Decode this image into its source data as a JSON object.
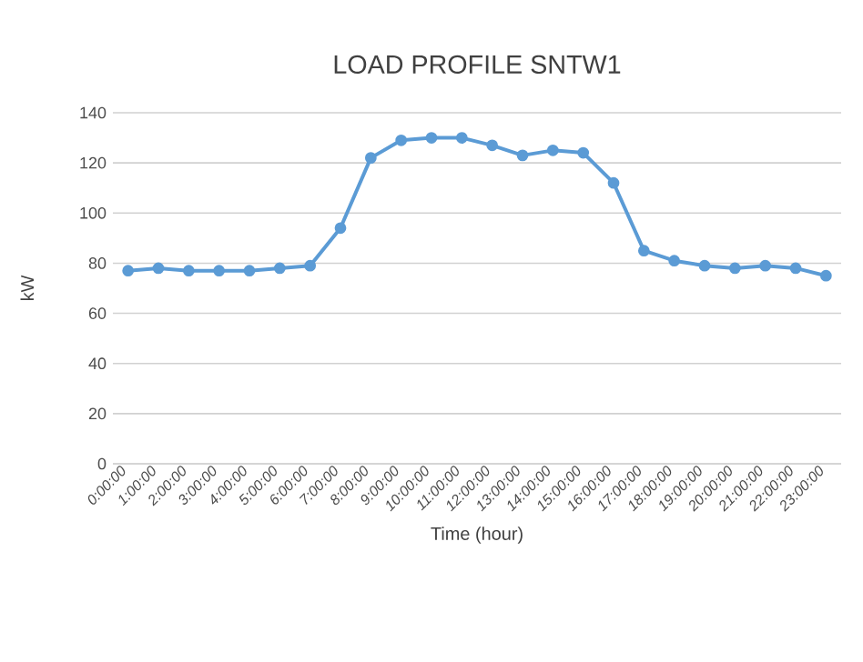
{
  "chart_data": {
    "type": "line",
    "title": "LOAD PROFILE SNTW1",
    "xlabel": "Time (hour)",
    "ylabel": "kW",
    "categories": [
      "0:00:00",
      "1:00:00",
      "2:00:00",
      "3:00:00",
      "4:00:00",
      "5:00:00",
      "6:00:00",
      "7:00:00",
      "8:00:00",
      "9:00:00",
      "10:00:00",
      "11:00:00",
      "12:00:00",
      "13:00:00",
      "14:00:00",
      "15:00:00",
      "16:00:00",
      "17:00:00",
      "18:00:00",
      "19:00:00",
      "20:00:00",
      "21:00:00",
      "22:00:00",
      "23:00:00"
    ],
    "series": [
      {
        "color": "#5b9bd5",
        "values": [
          77,
          78,
          77,
          77,
          77,
          78,
          79,
          94,
          122,
          129,
          130,
          130,
          127,
          123,
          125,
          124,
          112,
          85,
          81,
          79,
          78,
          79,
          78,
          75
        ]
      }
    ],
    "ylim": [
      0,
      140
    ],
    "yticks": [
      0,
      20,
      40,
      60,
      80,
      100,
      120,
      140
    ],
    "grid": "y",
    "marker": "circle",
    "line_style": "solid"
  }
}
